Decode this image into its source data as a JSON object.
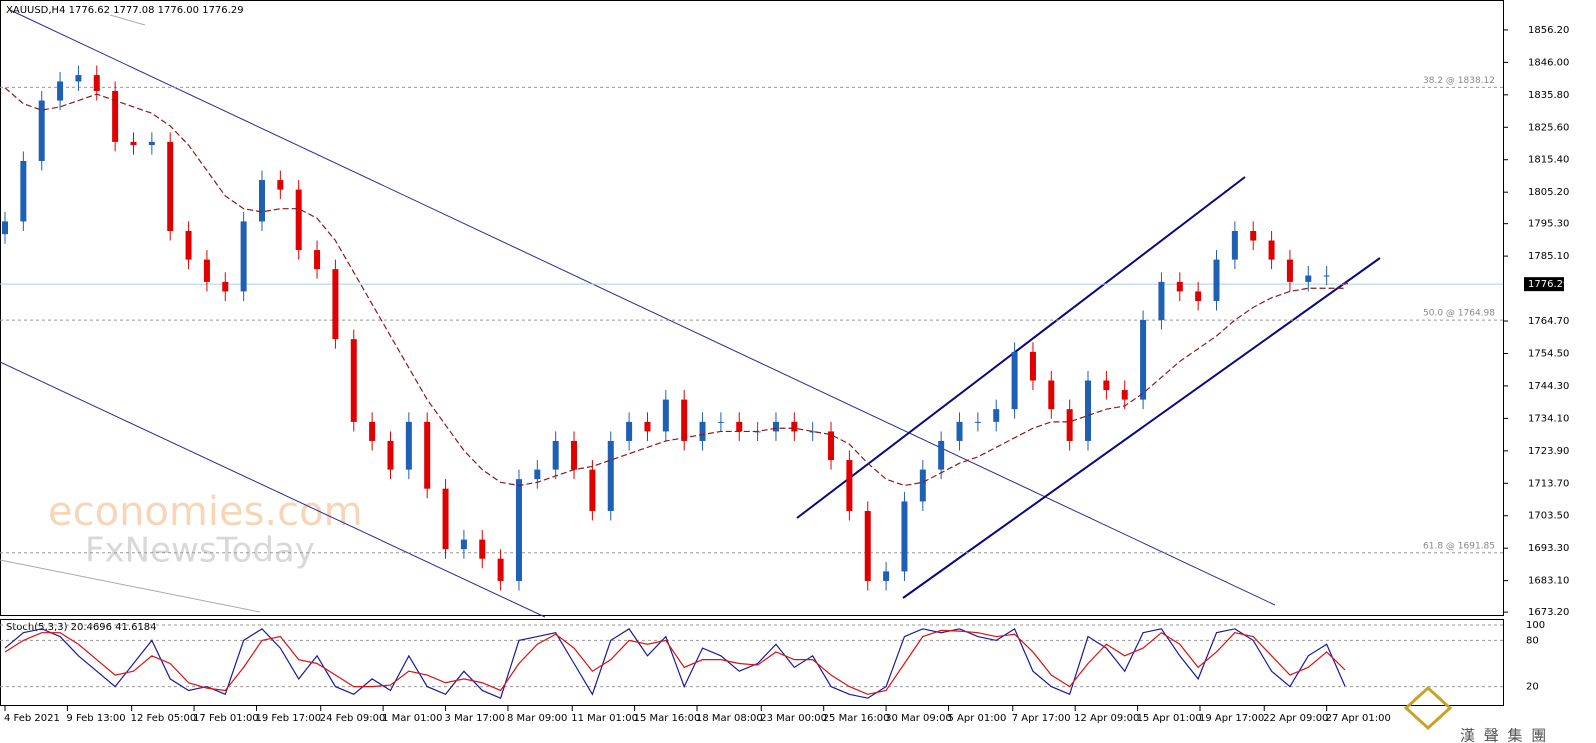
{
  "chart_data": [
    {
      "type": "candlestick",
      "title": "XAUUSD,H4 1776.62 1777.08 1776.00 1776.29",
      "up_color": "#1f5fb4",
      "down_color": "#e00000",
      "ohlc": [
        [
          1792,
          1799,
          1789,
          1796
        ],
        [
          1796,
          1818,
          1793,
          1815
        ],
        [
          1815,
          1837,
          1812,
          1834
        ],
        [
          1834,
          1843,
          1831,
          1840
        ],
        [
          1840,
          1845,
          1837,
          1842
        ],
        [
          1842,
          1845,
          1834,
          1837
        ],
        [
          1837,
          1840,
          1818,
          1821
        ],
        [
          1821,
          1824,
          1817,
          1820
        ],
        [
          1820,
          1824,
          1817,
          1821
        ],
        [
          1821,
          1824,
          1790,
          1793
        ],
        [
          1793,
          1796,
          1781,
          1784
        ],
        [
          1784,
          1787,
          1774,
          1777
        ],
        [
          1777,
          1780,
          1771,
          1774
        ],
        [
          1774,
          1799,
          1771,
          1796
        ],
        [
          1796,
          1812,
          1793,
          1809
        ],
        [
          1809,
          1812,
          1803,
          1806
        ],
        [
          1806,
          1809,
          1784,
          1787
        ],
        [
          1787,
          1790,
          1778,
          1781
        ],
        [
          1781,
          1784,
          1756,
          1759
        ],
        [
          1759,
          1762,
          1730,
          1733
        ],
        [
          1733,
          1736,
          1724,
          1727
        ],
        [
          1727,
          1730,
          1715,
          1718
        ],
        [
          1718,
          1736,
          1715,
          1733
        ],
        [
          1733,
          1736,
          1709,
          1712
        ],
        [
          1712,
          1715,
          1690,
          1693
        ],
        [
          1693,
          1699,
          1690,
          1696
        ],
        [
          1696,
          1699,
          1687,
          1690
        ],
        [
          1690,
          1693,
          1680,
          1683
        ],
        [
          1683,
          1718,
          1680,
          1715
        ],
        [
          1715,
          1721,
          1712,
          1718
        ],
        [
          1718,
          1730,
          1715,
          1727
        ],
        [
          1727,
          1730,
          1715,
          1718
        ],
        [
          1718,
          1721,
          1702,
          1705
        ],
        [
          1705,
          1730,
          1702,
          1727
        ],
        [
          1727,
          1736,
          1724,
          1733
        ],
        [
          1733,
          1736,
          1727,
          1730
        ],
        [
          1730,
          1743,
          1727,
          1740
        ],
        [
          1740,
          1743,
          1724,
          1727
        ],
        [
          1727,
          1736,
          1724,
          1733
        ],
        [
          1733,
          1736,
          1730,
          1733
        ],
        [
          1733,
          1736,
          1727,
          1730
        ],
        [
          1730,
          1733,
          1727,
          1730
        ],
        [
          1730,
          1736,
          1727,
          1733
        ],
        [
          1733,
          1736,
          1727,
          1730
        ],
        [
          1730,
          1733,
          1727,
          1730
        ],
        [
          1730,
          1733,
          1718,
          1721
        ],
        [
          1721,
          1724,
          1702,
          1705
        ],
        [
          1705,
          1708,
          1680,
          1683
        ],
        [
          1683,
          1689,
          1680,
          1686
        ],
        [
          1686,
          1711,
          1683,
          1708
        ],
        [
          1708,
          1721,
          1705,
          1718
        ],
        [
          1718,
          1730,
          1715,
          1727
        ],
        [
          1727,
          1736,
          1724,
          1733
        ],
        [
          1733,
          1736,
          1730,
          1733
        ],
        [
          1733,
          1740,
          1730,
          1737
        ],
        [
          1737,
          1758,
          1734,
          1755
        ],
        [
          1755,
          1758,
          1743,
          1746
        ],
        [
          1746,
          1749,
          1734,
          1737
        ],
        [
          1737,
          1740,
          1724,
          1727
        ],
        [
          1727,
          1749,
          1724,
          1746
        ],
        [
          1746,
          1749,
          1740,
          1743
        ],
        [
          1743,
          1746,
          1737,
          1740
        ],
        [
          1740,
          1768,
          1737,
          1765
        ],
        [
          1765,
          1780,
          1762,
          1777
        ],
        [
          1777,
          1780,
          1771,
          1774
        ],
        [
          1774,
          1777,
          1768,
          1771
        ],
        [
          1771,
          1787,
          1768,
          1784
        ],
        [
          1784,
          1796,
          1781,
          1793
        ],
        [
          1793,
          1796,
          1787,
          1790
        ],
        [
          1790,
          1793,
          1781,
          1784
        ],
        [
          1784,
          1787,
          1774,
          1777
        ],
        [
          1777,
          1782,
          1774,
          1779
        ],
        [
          1779,
          1782,
          1776,
          1779
        ],
        [
          1776.62,
          1777.08,
          1776.0,
          1776.29
        ]
      ],
      "ma": {
        "color": "#8b1a1a",
        "values": [
          1838,
          1833,
          1831,
          1832,
          1834,
          1836,
          1834,
          1832,
          1830,
          1826,
          1820,
          1812,
          1804,
          1800,
          1799,
          1800,
          1800,
          1797,
          1790,
          1780,
          1770,
          1760,
          1750,
          1740,
          1732,
          1724,
          1718,
          1714,
          1713,
          1714,
          1716,
          1718,
          1719,
          1721,
          1723,
          1725,
          1727,
          1728,
          1729,
          1730,
          1730,
          1730,
          1731,
          1731,
          1730,
          1729,
          1726,
          1720,
          1715,
          1713,
          1714,
          1717,
          1720,
          1722,
          1725,
          1728,
          1731,
          1733,
          1733,
          1735,
          1737,
          1738,
          1742,
          1747,
          1752,
          1756,
          1760,
          1765,
          1769,
          1772,
          1774,
          1775,
          1775,
          1775
        ]
      },
      "levels": [
        {
          "label": "38.2 @ 1838.12",
          "value": 1838.12
        },
        {
          "label": "50.0 @ 1764.98",
          "value": 1764.98
        },
        {
          "label": "61.8 @ 1691.85",
          "value": 1691.85
        }
      ],
      "last": 1776.29,
      "ylim": [
        1672.3,
        1865.6
      ],
      "yticks": [
        {
          "value": 1856.2,
          "label": "1856.20"
        },
        {
          "value": 1846.0,
          "label": "1846.00"
        },
        {
          "value": 1835.8,
          "label": "1835.80"
        },
        {
          "value": 1825.6,
          "label": "1825.60"
        },
        {
          "value": 1815.4,
          "label": "1815.40"
        },
        {
          "value": 1805.2,
          "label": "1805.20"
        },
        {
          "value": 1795.3,
          "label": "1795.30"
        },
        {
          "value": 1785.1,
          "label": "1785.10"
        },
        {
          "value": 1764.7,
          "label": "1764.70"
        },
        {
          "value": 1754.5,
          "label": "1754.50"
        },
        {
          "value": 1744.3,
          "label": "1744.30"
        },
        {
          "value": 1734.1,
          "label": "1734.10"
        },
        {
          "value": 1723.9,
          "label": "1723.90"
        },
        {
          "value": 1713.7,
          "label": "1713.70"
        },
        {
          "value": 1703.5,
          "label": "1703.50"
        },
        {
          "value": 1693.3,
          "label": "1693.30"
        },
        {
          "value": 1683.1,
          "label": "1683.10"
        },
        {
          "value": 1673.2,
          "label": "1673.20"
        }
      ],
      "xlim": [
        0,
        73
      ],
      "xticks": [
        {
          "value": 0,
          "label": "4 Feb 2021"
        },
        {
          "value": 3.4,
          "label": "9 Feb 13:00"
        },
        {
          "value": 6.9,
          "label": "12 Feb 05:00"
        },
        {
          "value": 10.3,
          "label": "17 Feb 01:00"
        },
        {
          "value": 13.7,
          "label": "19 Feb 17:00"
        },
        {
          "value": 17.2,
          "label": "24 Feb 09:00"
        },
        {
          "value": 20.6,
          "label": "1 Mar 01:00"
        },
        {
          "value": 24.0,
          "label": "3 Mar 17:00"
        },
        {
          "value": 27.4,
          "label": "8 Mar 09:00"
        },
        {
          "value": 30.9,
          "label": "11 Mar 01:00"
        },
        {
          "value": 34.3,
          "label": "15 Mar 16:00"
        },
        {
          "value": 37.7,
          "label": "18 Mar 08:00"
        },
        {
          "value": 41.2,
          "label": "23 Mar 00:00"
        },
        {
          "value": 44.6,
          "label": "25 Mar 16:00"
        },
        {
          "value": 48.0,
          "label": "30 Mar 09:00"
        },
        {
          "value": 51.4,
          "label": "5 Apr 01:00"
        },
        {
          "value": 54.9,
          "label": "7 Apr 17:00"
        },
        {
          "value": 58.3,
          "label": "12 Apr 09:00"
        },
        {
          "value": 61.7,
          "label": "15 Apr 01:00"
        },
        {
          "value": 65.1,
          "label": "19 Apr 17:00"
        },
        {
          "value": 68.6,
          "label": "22 Apr 09:00"
        },
        {
          "value": 72.0,
          "label": "27 Apr 01:00"
        }
      ]
    },
    {
      "type": "line",
      "title": "Stoch(5,3,3) 20.4696 41.6184",
      "series": [
        {
          "color": "#1a1aa0",
          "values": [
            70,
            90,
            95,
            85,
            60,
            40,
            20,
            50,
            80,
            30,
            15,
            20,
            10,
            80,
            95,
            70,
            30,
            60,
            20,
            10,
            30,
            15,
            60,
            20,
            10,
            40,
            15,
            5,
            80,
            85,
            90,
            50,
            10,
            80,
            95,
            60,
            85,
            20,
            70,
            60,
            40,
            50,
            75,
            45,
            60,
            20,
            10,
            5,
            20,
            85,
            95,
            90,
            95,
            85,
            80,
            95,
            40,
            20,
            10,
            85,
            70,
            40,
            90,
            95,
            60,
            30,
            90,
            95,
            80,
            40,
            20,
            60,
            75,
            20.4696
          ]
        },
        {
          "color": "#e01010",
          "values": [
            65,
            80,
            90,
            90,
            75,
            55,
            35,
            40,
            60,
            50,
            25,
            18,
            15,
            45,
            80,
            85,
            55,
            50,
            35,
            20,
            20,
            22,
            40,
            35,
            25,
            30,
            25,
            15,
            50,
            75,
            88,
            70,
            40,
            55,
            80,
            75,
            80,
            45,
            55,
            55,
            50,
            48,
            65,
            55,
            55,
            35,
            20,
            10,
            15,
            50,
            85,
            93,
            92,
            90,
            85,
            88,
            65,
            35,
            20,
            50,
            75,
            60,
            70,
            90,
            75,
            45,
            65,
            90,
            85,
            60,
            35,
            45,
            65,
            41.6184
          ]
        }
      ],
      "ylim": [
        0,
        100
      ],
      "yticks": [
        100,
        80,
        20
      ],
      "xlim": [
        0,
        73
      ]
    }
  ],
  "branding": {
    "watermark": [
      "economies.com",
      "FxNewsToday"
    ],
    "logo": "漢 聲 集 團"
  }
}
